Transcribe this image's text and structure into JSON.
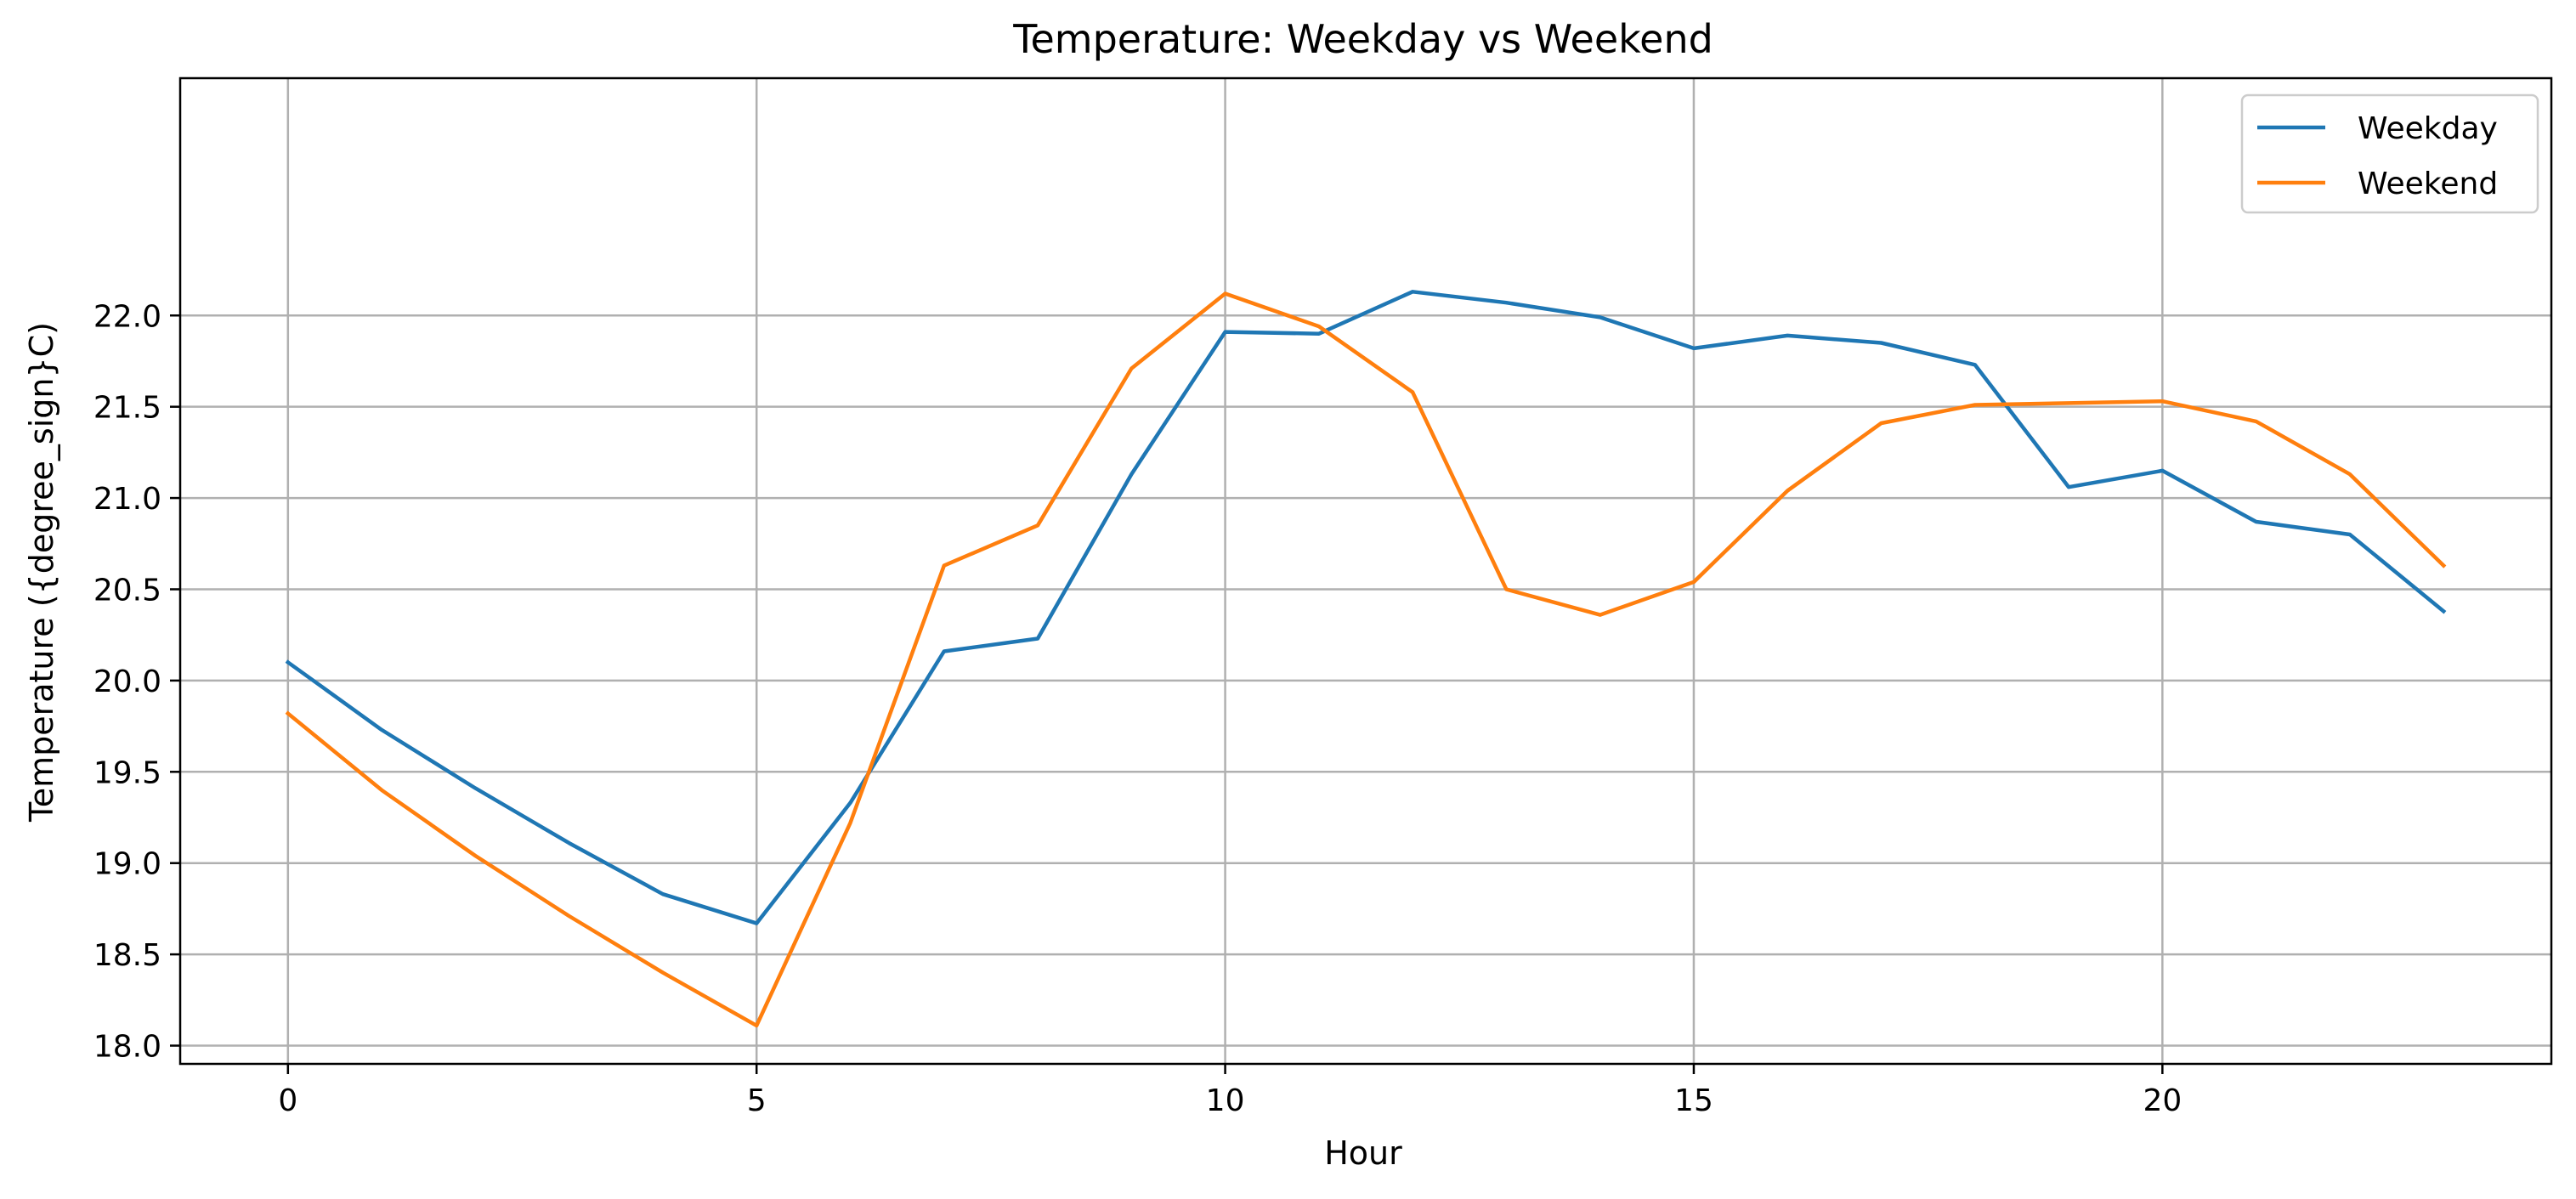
{
  "chart_data": {
    "type": "line",
    "title": "Temperature: Weekday vs Weekend",
    "xlabel": "Hour",
    "ylabel": "Temperature ({degree_sign}C)",
    "xlim": [
      -1.15,
      24.15
    ],
    "ylim": [
      17.9,
      23.3
    ],
    "xticks": [
      0,
      5,
      10,
      15,
      20
    ],
    "yticks": [
      18.0,
      18.5,
      19.0,
      19.5,
      20.0,
      20.5,
      21.0,
      21.5,
      22.0
    ],
    "ytick_labels": [
      "18.0",
      "18.5",
      "19.0",
      "19.5",
      "20.0",
      "20.5",
      "21.0",
      "21.5",
      "22.0"
    ],
    "grid": true,
    "legend_position": "top-right",
    "x": [
      0,
      1,
      2,
      3,
      4,
      5,
      6,
      7,
      8,
      9,
      10,
      11,
      12,
      13,
      14,
      15,
      16,
      17,
      18,
      19,
      20,
      21,
      22,
      23
    ],
    "series": [
      {
        "name": "Weekday",
        "color": "#1f77b4",
        "values": [
          20.1,
          19.73,
          19.41,
          19.11,
          18.83,
          18.67,
          19.33,
          20.16,
          20.23,
          21.13,
          21.91,
          21.9,
          22.13,
          22.07,
          21.99,
          21.82,
          21.89,
          21.85,
          21.73,
          21.06,
          21.15,
          20.87,
          20.8,
          20.38
        ]
      },
      {
        "name": "Weekend",
        "color": "#ff7f0e",
        "values": [
          19.82,
          19.4,
          19.04,
          18.71,
          18.4,
          18.11,
          19.22,
          20.63,
          20.85,
          21.71,
          22.12,
          21.94,
          21.58,
          20.5,
          20.36,
          20.54,
          21.04,
          21.41,
          21.51,
          21.52,
          21.53,
          21.42,
          21.13,
          20.63
        ]
      }
    ]
  }
}
